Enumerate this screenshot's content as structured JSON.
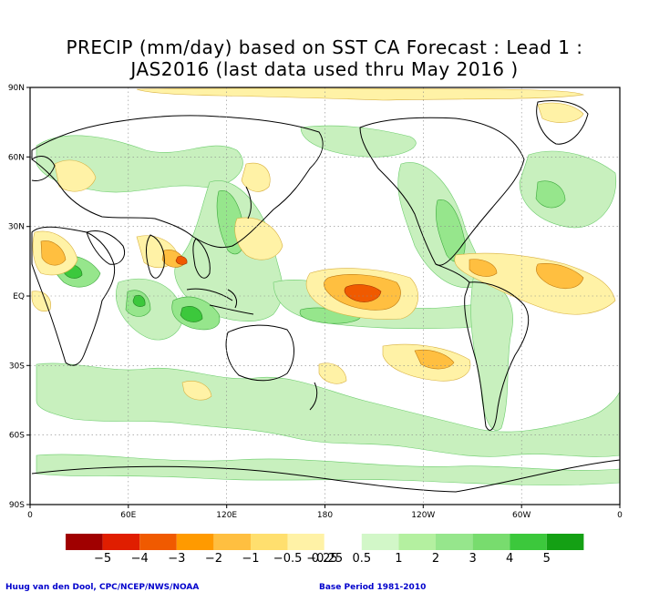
{
  "title": {
    "line1": "PRECIP (mm/day) based on SST CA Forecast : Lead 1 :",
    "line2": "JAS2016 (last data used thru May 2016 )"
  },
  "lat_labels": [
    "90N",
    "60N",
    "30N",
    "EQ",
    "30S",
    "60S",
    "90S"
  ],
  "lon_labels": [
    "0",
    "60E",
    "120E",
    "180",
    "120W",
    "60W",
    "0"
  ],
  "legend": {
    "labels": [
      "−5",
      "−4",
      "−3",
      "−2",
      "−1",
      "−0.5",
      "−0.25",
      "0.25",
      "0.5",
      "1",
      "2",
      "3",
      "4",
      "5"
    ],
    "colors": [
      "#a00000",
      "#e01e00",
      "#f05a00",
      "#ff9a00",
      "#ffbf40",
      "#ffdf6e",
      "#fff2a6",
      "#ffffff",
      "#d2f7c8",
      "#b4f0a0",
      "#96e68c",
      "#78dc6e",
      "#3cc83c",
      "#14a014"
    ]
  },
  "colors": {
    "dry_light": "#fff2a6",
    "dry_mid": "#ffbf40",
    "dry_strong": "#f05a00",
    "wet_light": "#c8f0be",
    "wet_mid": "#96e68c",
    "wet_strong": "#3cc83c",
    "credit_text": "#0000cc"
  },
  "credits": {
    "left": "Huug van den Dool, CPC/NCEP/NWS/NOAA",
    "right": "Base Period 1981-2010"
  }
}
